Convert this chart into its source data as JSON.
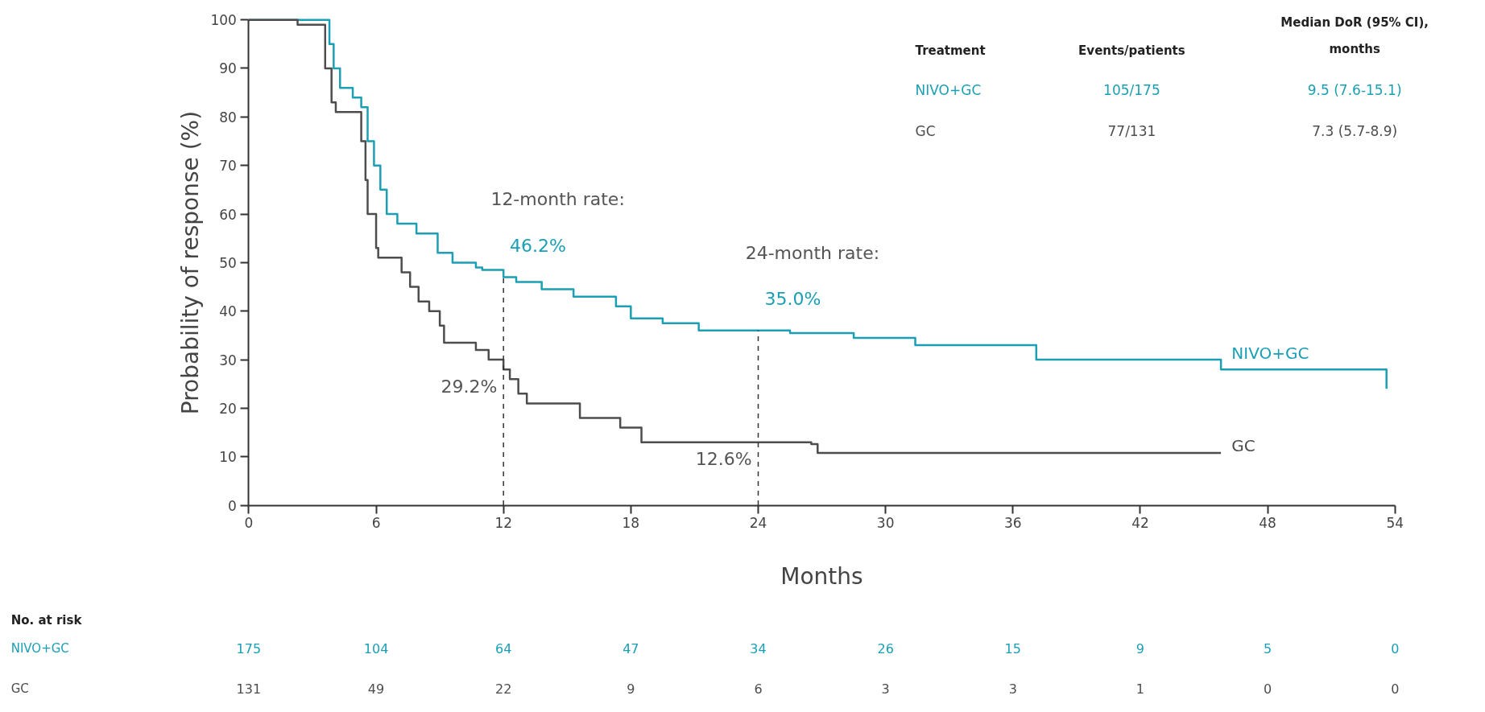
{
  "chart_data": {
    "type": "step",
    "xlabel": "Months",
    "ylabel": "Probability of response (%)",
    "xlim": [
      0,
      54
    ],
    "ylim": [
      0,
      100
    ],
    "xticks": [
      0,
      6,
      12,
      18,
      24,
      30,
      36,
      42,
      48,
      54
    ],
    "yticks": [
      0,
      10,
      20,
      30,
      40,
      50,
      60,
      70,
      80,
      90,
      100
    ],
    "grid": false,
    "legend": false,
    "line_style": "solid",
    "ref_lines": [
      {
        "axis": "x",
        "value": 12,
        "line_style": "dashed"
      },
      {
        "axis": "x",
        "value": 24,
        "line_style": "dashed"
      }
    ],
    "series": [
      {
        "name": "NIVO+GC",
        "color": "#1a9fb5",
        "x": [
          0,
          3.5,
          3.8,
          4.0,
          4.3,
          4.9,
          5.3,
          5.6,
          5.9,
          6.2,
          6.5,
          7.0,
          7.9,
          8.9,
          9.6,
          10.7,
          11.0,
          12.0,
          12.6,
          13.8,
          15.3,
          17.3,
          18.0,
          19.5,
          21.2,
          25.5,
          28.5,
          31.4,
          37.1,
          45.8,
          53.6
        ],
        "values": [
          100,
          100,
          95,
          90,
          86,
          84,
          82,
          75,
          70,
          65,
          60,
          58,
          56,
          52,
          50,
          49,
          48.5,
          47,
          46,
          44.5,
          43,
          41,
          38.5,
          37.5,
          36,
          35.5,
          34.5,
          33,
          30,
          28,
          24
        ]
      },
      {
        "name": "GC",
        "color": "#4d4d4d",
        "x": [
          0,
          2.3,
          3.4,
          3.6,
          3.9,
          4.1,
          5.3,
          5.5,
          5.6,
          6.0,
          6.1,
          7.2,
          7.6,
          8.0,
          8.5,
          9.0,
          9.2,
          10.7,
          11.3,
          12.0,
          12.3,
          12.7,
          13.1,
          15.6,
          17.5,
          18.5,
          26.5,
          26.8,
          45.8
        ],
        "values": [
          100,
          99,
          99,
          90,
          83,
          81,
          75,
          67,
          60,
          53,
          51,
          48,
          45,
          42,
          40,
          37,
          33.5,
          32,
          30,
          28,
          26,
          23,
          21,
          18,
          16,
          13,
          12.6,
          10.8,
          10.8
        ]
      }
    ],
    "annotations": [
      "12-month rate:",
      "46.2%",
      "29.2%",
      "24-month rate:",
      "35.0%",
      "12.6%",
      "Treatment",
      "Events/patients",
      "Median DoR (95% CI), months",
      "NIVO+GC",
      "105/175",
      "9.5 (7.6-15.1)",
      "GC",
      "77/131",
      "7.3 (5.7-8.9)",
      "No. at risk",
      "NIVO+GC",
      "175",
      "104",
      "64",
      "47",
      "34",
      "26",
      "15",
      "9",
      "5",
      "0",
      "GC",
      "131",
      "49",
      "22",
      "9",
      "6",
      "3",
      "3",
      "1",
      "0",
      "0"
    ]
  }
}
